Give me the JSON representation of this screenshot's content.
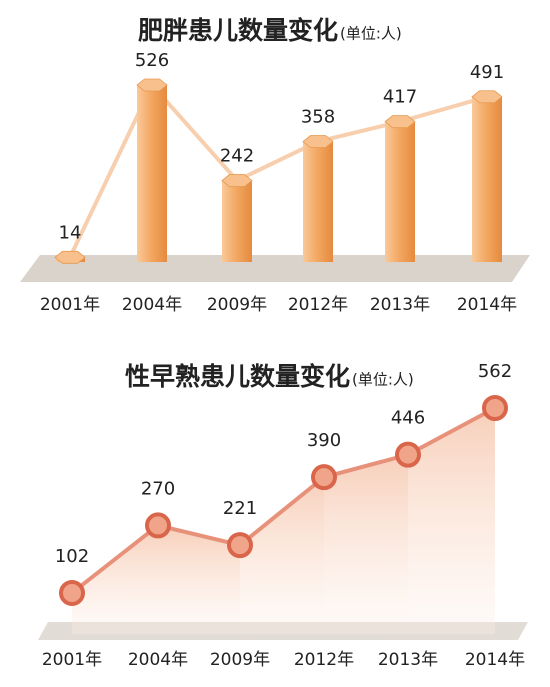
{
  "chart_data": [
    {
      "type": "bar",
      "title": "肥胖患儿数量变化",
      "subtitle": "(单位:人)",
      "categories": [
        "2001年",
        "2004年",
        "2009年",
        "2012年",
        "2013年",
        "2014年"
      ],
      "values": [
        14,
        526,
        242,
        358,
        417,
        491
      ],
      "color": "#f2a35e",
      "line_color": "#f7cfae"
    },
    {
      "type": "line",
      "title": "性早熟患儿数量变化",
      "subtitle": "(单位:人)",
      "categories": [
        "2001年",
        "2004年",
        "2009年",
        "2012年",
        "2013年",
        "2014年"
      ],
      "values": [
        102,
        270,
        221,
        390,
        446,
        562
      ],
      "color": "#e8917a",
      "fill": true
    }
  ]
}
